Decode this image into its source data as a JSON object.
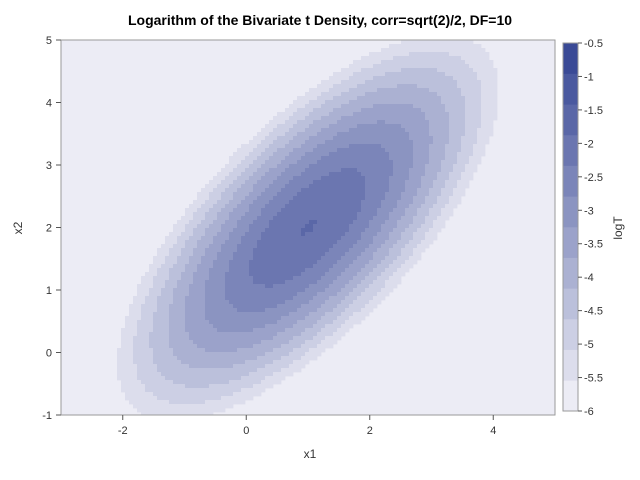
{
  "chart_data": {
    "type": "heatmap",
    "title": "Logarithm of the Bivariate t Density, corr=sqrt(2)/2, DF=10",
    "xlabel": "x1",
    "ylabel": "x2",
    "xlim": [
      -3,
      5
    ],
    "ylim": [
      -1,
      5
    ],
    "x_ticks": [
      "-2",
      "0",
      "2",
      "4"
    ],
    "y_ticks": [
      "-1",
      "0",
      "1",
      "2",
      "3",
      "4",
      "5"
    ],
    "distribution": {
      "family": "bivariate t",
      "df": 10,
      "corr": 0.7071,
      "mean": [
        1,
        2
      ]
    },
    "contour_levels": [
      -6,
      -5.5,
      -5,
      -4.5,
      -4,
      -3.5,
      -3,
      -2.5,
      -2,
      -1.5,
      -1,
      -0.5
    ],
    "colorbar": {
      "label": "logT",
      "ticks": [
        "-0.5",
        "-1",
        "-1.5",
        "-2",
        "-2.5",
        "-3",
        "-3.5",
        "-4",
        "-4.5",
        "-5",
        "-5.5",
        "-6"
      ],
      "color_low": "#ececf5",
      "color_high": "#3a4a96"
    },
    "grid": false,
    "legend": "right"
  }
}
